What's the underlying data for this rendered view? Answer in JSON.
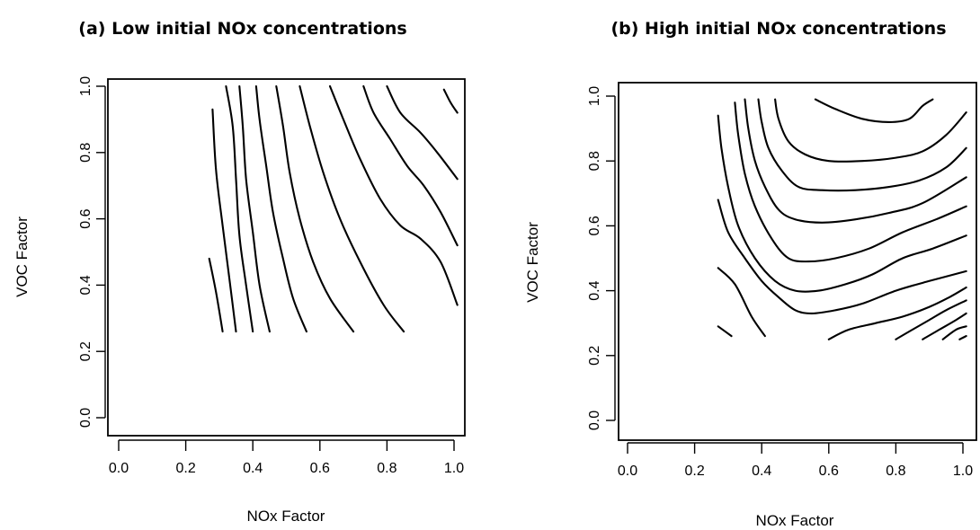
{
  "chart_data": [
    {
      "type": "contour",
      "title": "(a) Low initial NOx concentrations",
      "xlabel": "NOx Factor",
      "ylabel": "VOC Factor",
      "xlim": [
        0,
        1
      ],
      "ylim": [
        0,
        1
      ],
      "xticks": [
        "0.0",
        "0.2",
        "0.4",
        "0.6",
        "0.8",
        "1.0"
      ],
      "yticks": [
        "0.0",
        "0.2",
        "0.4",
        "0.6",
        "0.8",
        "1.0"
      ],
      "contours": [
        {
          "points": [
            [
              0.27,
              0.48
            ],
            [
              0.29,
              0.38
            ],
            [
              0.31,
              0.26
            ]
          ]
        },
        {
          "points": [
            [
              0.28,
              0.93
            ],
            [
              0.29,
              0.75
            ],
            [
              0.31,
              0.58
            ],
            [
              0.33,
              0.42
            ],
            [
              0.35,
              0.26
            ]
          ]
        },
        {
          "points": [
            [
              0.32,
              1.0
            ],
            [
              0.34,
              0.88
            ],
            [
              0.35,
              0.72
            ],
            [
              0.36,
              0.55
            ],
            [
              0.38,
              0.4
            ],
            [
              0.4,
              0.26
            ]
          ]
        },
        {
          "points": [
            [
              0.36,
              1.0
            ],
            [
              0.37,
              0.88
            ],
            [
              0.38,
              0.72
            ],
            [
              0.4,
              0.56
            ],
            [
              0.42,
              0.4
            ],
            [
              0.45,
              0.26
            ]
          ]
        },
        {
          "points": [
            [
              0.41,
              1.0
            ],
            [
              0.42,
              0.9
            ],
            [
              0.44,
              0.76
            ],
            [
              0.46,
              0.62
            ],
            [
              0.49,
              0.48
            ],
            [
              0.52,
              0.36
            ],
            [
              0.56,
              0.26
            ]
          ]
        },
        {
          "points": [
            [
              0.47,
              1.0
            ],
            [
              0.49,
              0.88
            ],
            [
              0.51,
              0.74
            ],
            [
              0.54,
              0.6
            ],
            [
              0.58,
              0.47
            ],
            [
              0.63,
              0.36
            ],
            [
              0.7,
              0.26
            ]
          ]
        },
        {
          "points": [
            [
              0.54,
              1.0
            ],
            [
              0.57,
              0.88
            ],
            [
              0.61,
              0.74
            ],
            [
              0.66,
              0.6
            ],
            [
              0.72,
              0.47
            ],
            [
              0.79,
              0.34
            ],
            [
              0.85,
              0.26
            ]
          ]
        },
        {
          "points": [
            [
              0.63,
              1.0
            ],
            [
              0.67,
              0.9
            ],
            [
              0.72,
              0.78
            ],
            [
              0.78,
              0.66
            ],
            [
              0.84,
              0.58
            ],
            [
              0.9,
              0.54
            ],
            [
              0.96,
              0.47
            ],
            [
              1.01,
              0.34
            ]
          ]
        },
        {
          "points": [
            [
              0.8,
              1.0
            ],
            [
              0.84,
              0.92
            ],
            [
              0.9,
              0.86
            ],
            [
              0.95,
              0.8
            ],
            [
              1.01,
              0.72
            ]
          ]
        },
        {
          "points": [
            [
              0.97,
              0.99
            ],
            [
              0.99,
              0.95
            ],
            [
              1.01,
              0.92
            ]
          ]
        },
        {
          "points": [
            [
              0.73,
              1.0
            ],
            [
              0.76,
              0.92
            ],
            [
              0.81,
              0.84
            ],
            [
              0.86,
              0.76
            ],
            [
              0.91,
              0.7
            ],
            [
              0.96,
              0.62
            ],
            [
              1.01,
              0.52
            ]
          ]
        }
      ]
    },
    {
      "type": "contour",
      "title": "(b) High initial NOx concentrations",
      "xlabel": "NOx Factor",
      "ylabel": "VOC Factor",
      "xlim": [
        0,
        1
      ],
      "ylim": [
        0,
        1
      ],
      "xticks": [
        "0.0",
        "0.2",
        "0.4",
        "0.6",
        "0.8",
        "1.0"
      ],
      "yticks": [
        "0.0",
        "0.2",
        "0.4",
        "0.6",
        "0.8",
        "1.0"
      ],
      "contours": [
        {
          "points": [
            [
              0.27,
              0.29
            ],
            [
              0.31,
              0.26
            ]
          ]
        },
        {
          "points": [
            [
              0.27,
              0.47
            ],
            [
              0.32,
              0.42
            ],
            [
              0.37,
              0.32
            ],
            [
              0.41,
              0.26
            ]
          ]
        },
        {
          "points": [
            [
              0.27,
              0.68
            ],
            [
              0.3,
              0.58
            ],
            [
              0.35,
              0.5
            ],
            [
              0.4,
              0.43
            ],
            [
              0.45,
              0.38
            ],
            [
              0.5,
              0.34
            ],
            [
              0.55,
              0.33
            ],
            [
              0.62,
              0.34
            ],
            [
              0.7,
              0.36
            ],
            [
              0.8,
              0.4
            ],
            [
              0.9,
              0.43
            ],
            [
              1.01,
              0.46
            ]
          ]
        },
        {
          "points": [
            [
              0.27,
              0.94
            ],
            [
              0.28,
              0.84
            ],
            [
              0.3,
              0.72
            ],
            [
              0.33,
              0.6
            ],
            [
              0.38,
              0.5
            ],
            [
              0.44,
              0.43
            ],
            [
              0.5,
              0.4
            ],
            [
              0.57,
              0.4
            ],
            [
              0.65,
              0.42
            ],
            [
              0.73,
              0.45
            ],
            [
              0.82,
              0.5
            ],
            [
              0.91,
              0.53
            ],
            [
              1.01,
              0.57
            ]
          ]
        },
        {
          "points": [
            [
              0.32,
              0.98
            ],
            [
              0.33,
              0.88
            ],
            [
              0.35,
              0.76
            ],
            [
              0.38,
              0.66
            ],
            [
              0.43,
              0.56
            ],
            [
              0.48,
              0.5
            ],
            [
              0.54,
              0.49
            ],
            [
              0.62,
              0.5
            ],
            [
              0.72,
              0.53
            ],
            [
              0.82,
              0.58
            ],
            [
              0.92,
              0.62
            ],
            [
              1.01,
              0.66
            ]
          ]
        },
        {
          "points": [
            [
              0.35,
              0.99
            ],
            [
              0.36,
              0.9
            ],
            [
              0.38,
              0.8
            ],
            [
              0.41,
              0.72
            ],
            [
              0.45,
              0.65
            ],
            [
              0.5,
              0.62
            ],
            [
              0.58,
              0.61
            ],
            [
              0.68,
              0.62
            ],
            [
              0.78,
              0.64
            ],
            [
              0.88,
              0.67
            ],
            [
              1.01,
              0.75
            ]
          ]
        },
        {
          "points": [
            [
              0.39,
              0.99
            ],
            [
              0.4,
              0.92
            ],
            [
              0.42,
              0.84
            ],
            [
              0.46,
              0.77
            ],
            [
              0.51,
              0.72
            ],
            [
              0.58,
              0.71
            ],
            [
              0.68,
              0.71
            ],
            [
              0.78,
              0.72
            ],
            [
              0.87,
              0.74
            ],
            [
              0.95,
              0.78
            ],
            [
              1.01,
              0.84
            ]
          ]
        },
        {
          "points": [
            [
              0.44,
              0.99
            ],
            [
              0.45,
              0.93
            ],
            [
              0.48,
              0.86
            ],
            [
              0.53,
              0.82
            ],
            [
              0.6,
              0.8
            ],
            [
              0.7,
              0.8
            ],
            [
              0.8,
              0.81
            ],
            [
              0.88,
              0.83
            ],
            [
              0.95,
              0.88
            ],
            [
              1.01,
              0.95
            ]
          ]
        },
        {
          "points": [
            [
              0.56,
              0.99
            ],
            [
              0.62,
              0.96
            ],
            [
              0.7,
              0.93
            ],
            [
              0.78,
              0.92
            ],
            [
              0.84,
              0.93
            ],
            [
              0.88,
              0.97
            ],
            [
              0.91,
              0.99
            ]
          ]
        },
        {
          "points": [
            [
              0.6,
              0.25
            ],
            [
              0.66,
              0.28
            ],
            [
              0.74,
              0.3
            ],
            [
              0.82,
              0.32
            ],
            [
              0.9,
              0.35
            ],
            [
              0.96,
              0.38
            ],
            [
              1.01,
              0.41
            ]
          ]
        },
        {
          "points": [
            [
              0.8,
              0.25
            ],
            [
              0.85,
              0.28
            ],
            [
              0.9,
              0.31
            ],
            [
              0.95,
              0.34
            ],
            [
              1.01,
              0.37
            ]
          ]
        },
        {
          "points": [
            [
              0.88,
              0.25
            ],
            [
              0.93,
              0.28
            ],
            [
              0.98,
              0.31
            ],
            [
              1.01,
              0.33
            ]
          ]
        },
        {
          "points": [
            [
              0.94,
              0.25
            ],
            [
              0.98,
              0.28
            ],
            [
              1.01,
              0.29
            ]
          ]
        },
        {
          "points": [
            [
              0.99,
              0.25
            ],
            [
              1.01,
              0.26
            ]
          ]
        }
      ]
    }
  ]
}
